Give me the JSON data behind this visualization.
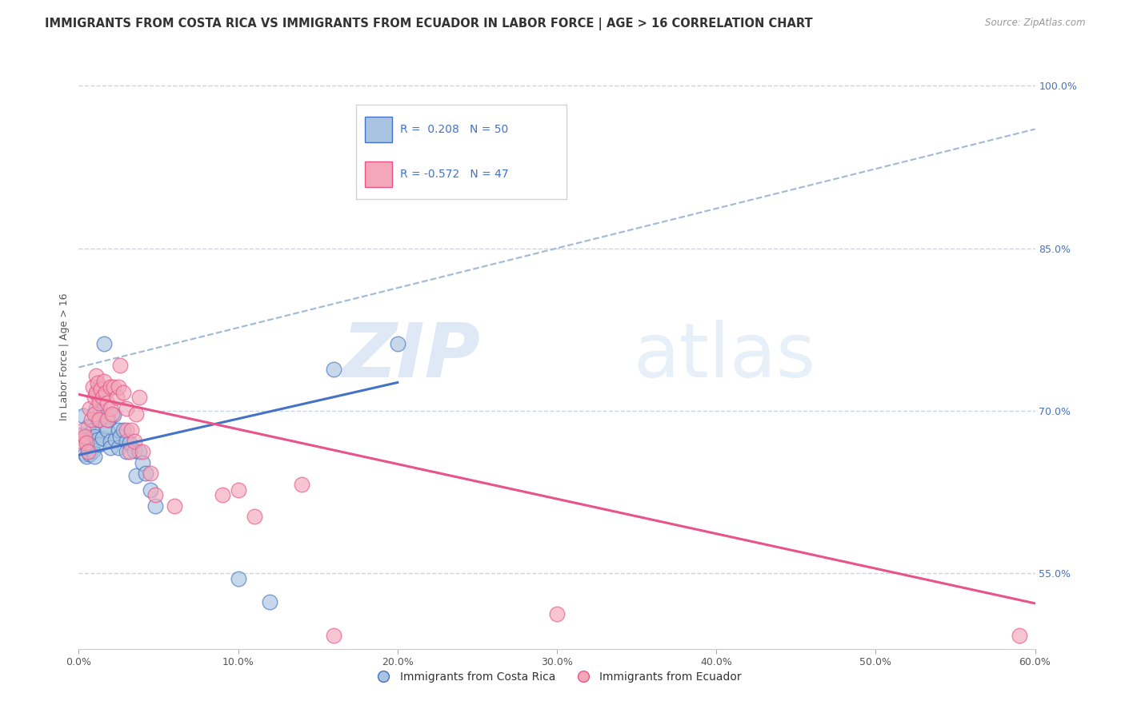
{
  "title": "IMMIGRANTS FROM COSTA RICA VS IMMIGRANTS FROM ECUADOR IN LABOR FORCE | AGE > 16 CORRELATION CHART",
  "source": "Source: ZipAtlas.com",
  "ylabel": "In Labor Force | Age > 16",
  "xlim": [
    0.0,
    0.6
  ],
  "ylim": [
    0.48,
    1.02
  ],
  "xtick_labels": [
    "0.0%",
    "10.0%",
    "20.0%",
    "30.0%",
    "40.0%",
    "50.0%",
    "60.0%"
  ],
  "xtick_values": [
    0.0,
    0.1,
    0.2,
    0.3,
    0.4,
    0.5,
    0.6
  ],
  "ytick_labels_right": [
    "100.0%",
    "85.0%",
    "70.0%",
    "55.0%"
  ],
  "ytick_values_right": [
    1.0,
    0.85,
    0.7,
    0.55
  ],
  "blue_color": "#a8c4e0",
  "pink_color": "#f4a7b9",
  "blue_line_color": "#4472c4",
  "pink_line_color": "#e8548a",
  "dashed_line_color": "#a0b8d8",
  "legend_blue_label": "Immigrants from Costa Rica",
  "legend_pink_label": "Immigrants from Ecuador",
  "blue_scatter": [
    [
      0.002,
      0.678
    ],
    [
      0.003,
      0.695
    ],
    [
      0.004,
      0.66
    ],
    [
      0.005,
      0.658
    ],
    [
      0.005,
      0.675
    ],
    [
      0.006,
      0.685
    ],
    [
      0.006,
      0.665
    ],
    [
      0.007,
      0.672
    ],
    [
      0.007,
      0.66
    ],
    [
      0.008,
      0.675
    ],
    [
      0.008,
      0.668
    ],
    [
      0.009,
      0.682
    ],
    [
      0.009,
      0.663
    ],
    [
      0.01,
      0.676
    ],
    [
      0.01,
      0.658
    ],
    [
      0.011,
      0.716
    ],
    [
      0.011,
      0.702
    ],
    [
      0.012,
      0.673
    ],
    [
      0.012,
      0.692
    ],
    [
      0.013,
      0.722
    ],
    [
      0.013,
      0.669
    ],
    [
      0.014,
      0.698
    ],
    [
      0.015,
      0.713
    ],
    [
      0.015,
      0.675
    ],
    [
      0.016,
      0.762
    ],
    [
      0.017,
      0.686
    ],
    [
      0.018,
      0.682
    ],
    [
      0.019,
      0.692
    ],
    [
      0.02,
      0.672
    ],
    [
      0.02,
      0.666
    ],
    [
      0.022,
      0.696
    ],
    [
      0.023,
      0.673
    ],
    [
      0.025,
      0.682
    ],
    [
      0.025,
      0.666
    ],
    [
      0.026,
      0.676
    ],
    [
      0.028,
      0.682
    ],
    [
      0.03,
      0.672
    ],
    [
      0.03,
      0.662
    ],
    [
      0.032,
      0.67
    ],
    [
      0.035,
      0.663
    ],
    [
      0.036,
      0.64
    ],
    [
      0.038,
      0.662
    ],
    [
      0.04,
      0.652
    ],
    [
      0.042,
      0.642
    ],
    [
      0.045,
      0.627
    ],
    [
      0.048,
      0.612
    ],
    [
      0.1,
      0.545
    ],
    [
      0.12,
      0.523
    ],
    [
      0.16,
      0.738
    ],
    [
      0.2,
      0.762
    ]
  ],
  "pink_scatter": [
    [
      0.002,
      0.672
    ],
    [
      0.003,
      0.682
    ],
    [
      0.004,
      0.676
    ],
    [
      0.005,
      0.67
    ],
    [
      0.006,
      0.662
    ],
    [
      0.007,
      0.702
    ],
    [
      0.008,
      0.692
    ],
    [
      0.009,
      0.722
    ],
    [
      0.01,
      0.712
    ],
    [
      0.01,
      0.697
    ],
    [
      0.011,
      0.732
    ],
    [
      0.011,
      0.717
    ],
    [
      0.012,
      0.726
    ],
    [
      0.013,
      0.707
    ],
    [
      0.013,
      0.692
    ],
    [
      0.014,
      0.72
    ],
    [
      0.015,
      0.712
    ],
    [
      0.016,
      0.727
    ],
    [
      0.017,
      0.717
    ],
    [
      0.018,
      0.707
    ],
    [
      0.018,
      0.692
    ],
    [
      0.02,
      0.722
    ],
    [
      0.02,
      0.702
    ],
    [
      0.021,
      0.697
    ],
    [
      0.022,
      0.722
    ],
    [
      0.024,
      0.712
    ],
    [
      0.025,
      0.722
    ],
    [
      0.026,
      0.742
    ],
    [
      0.028,
      0.717
    ],
    [
      0.03,
      0.702
    ],
    [
      0.03,
      0.682
    ],
    [
      0.032,
      0.662
    ],
    [
      0.033,
      0.682
    ],
    [
      0.035,
      0.672
    ],
    [
      0.036,
      0.697
    ],
    [
      0.038,
      0.712
    ],
    [
      0.04,
      0.662
    ],
    [
      0.045,
      0.642
    ],
    [
      0.048,
      0.622
    ],
    [
      0.06,
      0.612
    ],
    [
      0.09,
      0.622
    ],
    [
      0.1,
      0.627
    ],
    [
      0.11,
      0.602
    ],
    [
      0.14,
      0.632
    ],
    [
      0.16,
      0.492
    ],
    [
      0.3,
      0.512
    ],
    [
      0.59,
      0.492
    ]
  ],
  "blue_trend_x": [
    0.0,
    0.2
  ],
  "blue_trend_y": [
    0.659,
    0.726
  ],
  "pink_trend_x": [
    0.0,
    0.6
  ],
  "pink_trend_y": [
    0.715,
    0.522
  ],
  "dashed_trend_x": [
    0.0,
    0.6
  ],
  "dashed_trend_y": [
    0.74,
    0.96
  ],
  "watermark_zip": "ZIP",
  "watermark_atlas": "atlas",
  "background_color": "#ffffff",
  "grid_color": "#c8d4e8",
  "title_fontsize": 10.5,
  "axis_label_fontsize": 9,
  "tick_fontsize": 9,
  "legend_r1_text": "R =  0.208   N = 50",
  "legend_r2_text": "R = -0.572   N = 47"
}
